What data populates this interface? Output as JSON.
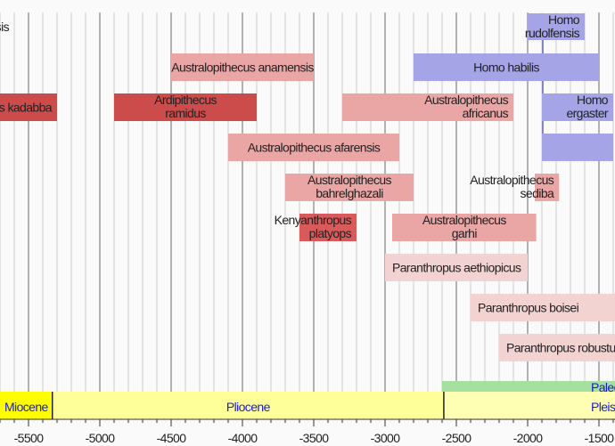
{
  "chart_data": {
    "type": "bar",
    "orientation": "horizontal-range",
    "x_unit": "thousand years",
    "xlim": [
      -5700,
      -1400
    ],
    "xticks": [
      -5500,
      -5000,
      -4500,
      -4000,
      -3500,
      -3000,
      -2500,
      -2000,
      -1500
    ],
    "xtick_labels": [
      "-5500",
      "-5000",
      "-4500",
      "-4000",
      "-3500",
      "-3000",
      "-2500",
      "-2000",
      "-1500"
    ],
    "grid": "vertical, major every 500, minor every 100",
    "ranges": [
      {
        "label": [
          "Sahelanthropus tchadensis"
        ],
        "start": null,
        "end": null,
        "color": "none"
      },
      {
        "label": [
          "Homo",
          "rudolfensis"
        ],
        "start": -2000,
        "end": -1600,
        "color": "#a4a4e6"
      },
      {
        "label": [
          "Australopithecus anamensis"
        ],
        "start": -4500,
        "end": -3500,
        "color": "#eaa5a5"
      },
      {
        "label": [
          "Homo habilis"
        ],
        "start": -2800,
        "end": -1500,
        "color": "#a4a4e6"
      },
      {
        "label": [
          "Ardipithecus kadabba"
        ],
        "start": -5800,
        "end": -5300,
        "color": "#cc4b4b"
      },
      {
        "label": [
          "Ardipithecus",
          "ramidus"
        ],
        "start": -4900,
        "end": -3900,
        "color": "#cc4b4b"
      },
      {
        "label": [
          "Australopithecus",
          "africanus"
        ],
        "start": -3300,
        "end": -2100,
        "color": "#eaa5a5"
      },
      {
        "label": [
          "Homo",
          "ergaster"
        ],
        "start": -1900,
        "end": -1400,
        "color": "#a4a4e6"
      },
      {
        "label": [
          "Australopithecus afarensis"
        ],
        "start": -4100,
        "end": -2900,
        "color": "#eaa5a5"
      },
      {
        "label": [
          ""
        ],
        "start": -1900,
        "end": -1400,
        "color": "#a4a4e6"
      },
      {
        "label": [
          "Australopithecus",
          "bahrelghazali"
        ],
        "start": -3700,
        "end": -2800,
        "color": "#eaa5a5"
      },
      {
        "label": [
          "Australopithecus",
          "sediba"
        ],
        "start": -1950,
        "end": -1780,
        "color": "#eaa5a5"
      },
      {
        "label": [
          "Kenyanthropus",
          "platyops"
        ],
        "start": -3600,
        "end": -3200,
        "color": "#d95a5a"
      },
      {
        "label": [
          "Australopithecus",
          "garhi"
        ],
        "start": -2950,
        "end": -1940,
        "color": "#eaa5a5"
      },
      {
        "label": [
          "Paranthropus aethiopicus"
        ],
        "start": -3000,
        "end": -2000,
        "color": "#f3d2d2"
      },
      {
        "label": [
          "Paranthropus boisei"
        ],
        "start": -2400,
        "end": -1200,
        "color": "#f3d2d2"
      },
      {
        "label": [
          "Paranthropus robustus"
        ],
        "start": -2200,
        "end": -1200,
        "color": "#f3d2d2"
      }
    ],
    "periods": [
      {
        "label": "Miocene",
        "start": -6000,
        "end": -5333,
        "color": "#ffff00"
      },
      {
        "label": "Pliocene",
        "start": -5333,
        "end": -2588,
        "color": "#ffff99"
      },
      {
        "label": "Pleistocene",
        "start": -2588,
        "end": -1000,
        "color": "#ffffb3"
      }
    ],
    "cultures": [
      {
        "label": "Paleolithic",
        "start": -2600,
        "end": -1000,
        "color": "#a6e0a0"
      }
    ],
    "label_color": "#222222",
    "period_label_color": "#1a1acc"
  }
}
